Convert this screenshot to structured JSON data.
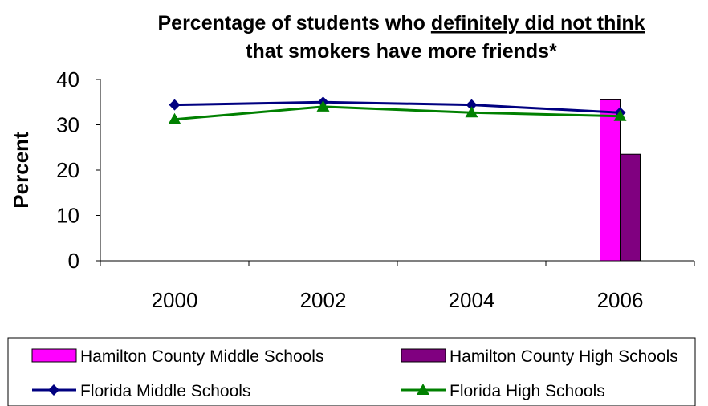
{
  "chart_data": {
    "type": "line",
    "title_line1_prefix": "Percentage of students who ",
    "title_line1_underlined": "definitely did not think",
    "title_line2": "that smokers have more friends*",
    "xlabel": "",
    "ylabel": "Percent",
    "ylim": [
      0,
      40
    ],
    "yticks": [
      "0",
      "10",
      "20",
      "30",
      "40"
    ],
    "categories": [
      "2000",
      "2002",
      "2004",
      "2006"
    ],
    "grid": false,
    "legend_position": "bottom",
    "series": [
      {
        "name": "Hamilton County Middle Schools",
        "kind": "bar",
        "color": "#ff00ff",
        "values": [
          null,
          null,
          null,
          35.5
        ]
      },
      {
        "name": "Hamilton County High Schools",
        "kind": "bar",
        "color": "#800080",
        "values": [
          null,
          null,
          null,
          23.5
        ]
      },
      {
        "name": "Florida Middle Schools",
        "kind": "line",
        "marker": "diamond",
        "color": "#000080",
        "values": [
          34.4,
          35.0,
          34.4,
          32.7
        ]
      },
      {
        "name": "Florida High Schools",
        "kind": "line",
        "marker": "triangle",
        "color": "#008000",
        "values": [
          31.2,
          34.0,
          32.7,
          31.9
        ]
      }
    ]
  }
}
